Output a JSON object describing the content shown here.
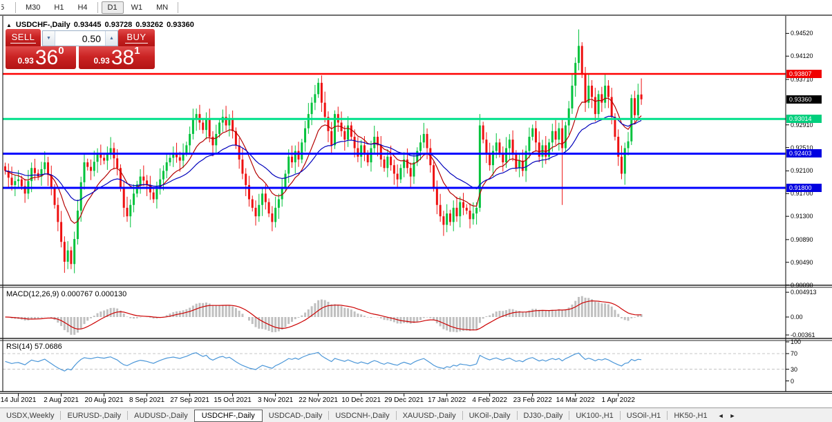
{
  "toolbar": {
    "timeframes": [
      "5",
      "M30",
      "H1",
      "H4",
      "D1",
      "W1",
      "MN"
    ],
    "active": "D1"
  },
  "info_bar": {
    "collapse_icon": "▲",
    "symbol": "USDCHF-,Daily",
    "open": "0.93445",
    "high": "0.93728",
    "low": "0.93262",
    "close": "0.93360"
  },
  "trade_panel": {
    "sell_label": "SELL",
    "buy_label": "BUY",
    "volume": "0.50",
    "spinner_down": "▼",
    "spinner_up": "▲",
    "sell_price_prefix": "0.93",
    "sell_price_big": "36",
    "sell_price_sup": "0",
    "buy_price_prefix": "0.93",
    "buy_price_big": "38",
    "buy_price_sup": "1"
  },
  "price_axis": {
    "ticks": [
      "0.94520",
      "0.94120",
      "0.93710",
      "0.92910",
      "0.92510",
      "0.92100",
      "0.91700",
      "0.91300",
      "0.90890",
      "0.90490",
      "0.90090"
    ],
    "tags": [
      {
        "text": "0.93807",
        "price": 0.93807,
        "color": "#f00000"
      },
      {
        "text": "0.93360",
        "price": 0.9336,
        "color": "#000000"
      },
      {
        "text": "0.93014",
        "price": 0.93014,
        "color": "#00cf7d"
      },
      {
        "text": "0.92403",
        "price": 0.92403,
        "color": "#0000e0"
      },
      {
        "text": "0.91800",
        "price": 0.918,
        "color": "#0000e0"
      }
    ]
  },
  "macd_panel": {
    "label": "MACD(12,26,9) 0.000767 0.000130",
    "axis": [
      {
        "text": "0.004913",
        "value": 0.004913
      },
      {
        "text": "0.00",
        "value": 0
      },
      {
        "text": "-0.00361",
        "value": -0.00361
      }
    ]
  },
  "rsi_panel": {
    "label": "RSI(14) 57.0686",
    "axis": [
      {
        "text": "100",
        "value": 100
      },
      {
        "text": "70",
        "value": 70
      },
      {
        "text": "30",
        "value": 30
      },
      {
        "text": "0",
        "value": 0
      }
    ],
    "dashed_levels": [
      70,
      30
    ]
  },
  "time_axis": {
    "labels": [
      "14 Jul 2021",
      "2 Aug 2021",
      "20 Aug 2021",
      "8 Sep 2021",
      "27 Sep 2021",
      "15 Oct 2021",
      "3 Nov 2021",
      "22 Nov 2021",
      "10 Dec 2021",
      "29 Dec 2021",
      "17 Jan 2022",
      "4 Feb 2022",
      "23 Feb 2022",
      "14 Mar 2022",
      "1 Apr 2022"
    ],
    "label_candle_indices": [
      4,
      17,
      30,
      43,
      56,
      69,
      82,
      95,
      108,
      121,
      134,
      147,
      160,
      173,
      186
    ]
  },
  "tab_bar": {
    "tabs": [
      "USDX,Weekly",
      "EURUSD-,Daily",
      "AUDUSD-,Daily",
      "USDCHF-,Daily",
      "USDCAD-,Daily",
      "USDCNH-,Daily",
      "XAUUSD-,Daily",
      "UKOil-,Daily",
      "DJ30-,Daily",
      "UK100-,H1",
      "USOil-,H1",
      "HK50-,H1"
    ],
    "active": "USDCHF-,Daily",
    "scroll_left": "◄",
    "scroll_right": "►"
  },
  "chart_data": {
    "type": "candlestick",
    "symbol": "USDCHF",
    "timeframe": "Daily",
    "price_range": [
      0.901,
      0.9474
    ],
    "up_color": "#00c23c",
    "down_color": "#ee1111",
    "ma_fast": {
      "period": 12,
      "color": "#b40000"
    },
    "ma_slow": {
      "period": 30,
      "color": "#0000bb"
    },
    "rsi_color": "#4a96d8",
    "macd_hist_color": "#c0c0c0",
    "macd_signal_color": "#cc0000",
    "horizontal_lines": [
      {
        "price": 0.93807,
        "color": "#ff0000",
        "width": 2.5
      },
      {
        "price": 0.93014,
        "color": "#00e08a",
        "width": 3
      },
      {
        "price": 0.92403,
        "color": "#0000ff",
        "width": 3
      },
      {
        "price": 0.918,
        "color": "#0000ff",
        "width": 3
      }
    ],
    "current_price": 0.9336,
    "open_first": 0.9218,
    "default_wick": 0.0013,
    "closes": [
      0.921,
      0.9198,
      0.9185,
      0.9192,
      0.9195,
      0.9183,
      0.917,
      0.9192,
      0.9215,
      0.9206,
      0.92,
      0.9213,
      0.9225,
      0.9203,
      0.918,
      0.915,
      0.912,
      0.9085,
      0.905,
      0.907,
      0.9046,
      0.909,
      0.914,
      0.919,
      0.9225,
      0.9217,
      0.921,
      0.9226,
      0.924,
      0.9233,
      0.9228,
      0.924,
      0.925,
      0.9232,
      0.9215,
      0.918,
      0.9145,
      0.913,
      0.915,
      0.917,
      0.9186,
      0.92,
      0.9193,
      0.9185,
      0.9172,
      0.916,
      0.9178,
      0.9195,
      0.921,
      0.9225,
      0.9233,
      0.924,
      0.9234,
      0.9228,
      0.9242,
      0.9255,
      0.9275,
      0.93,
      0.931,
      0.9295,
      0.9282,
      0.93,
      0.927,
      0.9255,
      0.9275,
      0.9295,
      0.9305,
      0.929,
      0.93,
      0.928,
      0.9255,
      0.923,
      0.9205,
      0.9185,
      0.916,
      0.9145,
      0.913,
      0.915,
      0.917,
      0.9155,
      0.9135,
      0.912,
      0.9145,
      0.916,
      0.918,
      0.9205,
      0.9235,
      0.9225,
      0.9245,
      0.923,
      0.926,
      0.9285,
      0.931,
      0.933,
      0.9345,
      0.9365,
      0.933,
      0.9305,
      0.928,
      0.9255,
      0.931,
      0.9295,
      0.928,
      0.9265,
      0.929,
      0.927,
      0.925,
      0.9235,
      0.9255,
      0.924,
      0.9225,
      0.925,
      0.927,
      0.9255,
      0.923,
      0.9215,
      0.9235,
      0.922,
      0.9205,
      0.9195,
      0.9215,
      0.923,
      0.9215,
      0.92,
      0.9225,
      0.9245,
      0.926,
      0.9275,
      0.925,
      0.922,
      0.918,
      0.915,
      0.913,
      0.9115,
      0.9135,
      0.912,
      0.9145,
      0.913,
      0.9155,
      0.9145,
      0.914,
      0.9125,
      0.9135,
      0.9145,
      0.929,
      0.9265,
      0.924,
      0.922,
      0.9245,
      0.926,
      0.924,
      0.9225,
      0.925,
      0.9265,
      0.924,
      0.9215,
      0.9228,
      0.921,
      0.9245,
      0.927,
      0.9285,
      0.926,
      0.9235,
      0.9255,
      0.9235,
      0.926,
      0.928,
      0.9265,
      0.9285,
      0.925,
      0.929,
      0.932,
      0.936,
      0.94,
      0.943,
      0.938,
      0.933,
      0.936,
      0.934,
      0.931,
      0.9345,
      0.933,
      0.936,
      0.934,
      0.9305,
      0.927,
      0.9235,
      0.9205,
      0.925,
      0.9262,
      0.9338,
      0.9308,
      0.9344,
      0.9336
    ],
    "overrides": {
      "20": {
        "low": 0.9037
      },
      "95": {
        "high": 0.9373
      },
      "144": {
        "high": 0.931,
        "low": 0.9138
      },
      "169": {
        "low": 0.915
      },
      "174": {
        "high": 0.9459
      },
      "193": {
        "open": 0.93445,
        "high": 0.93728,
        "low": 0.93262,
        "close": 0.9336
      }
    }
  }
}
